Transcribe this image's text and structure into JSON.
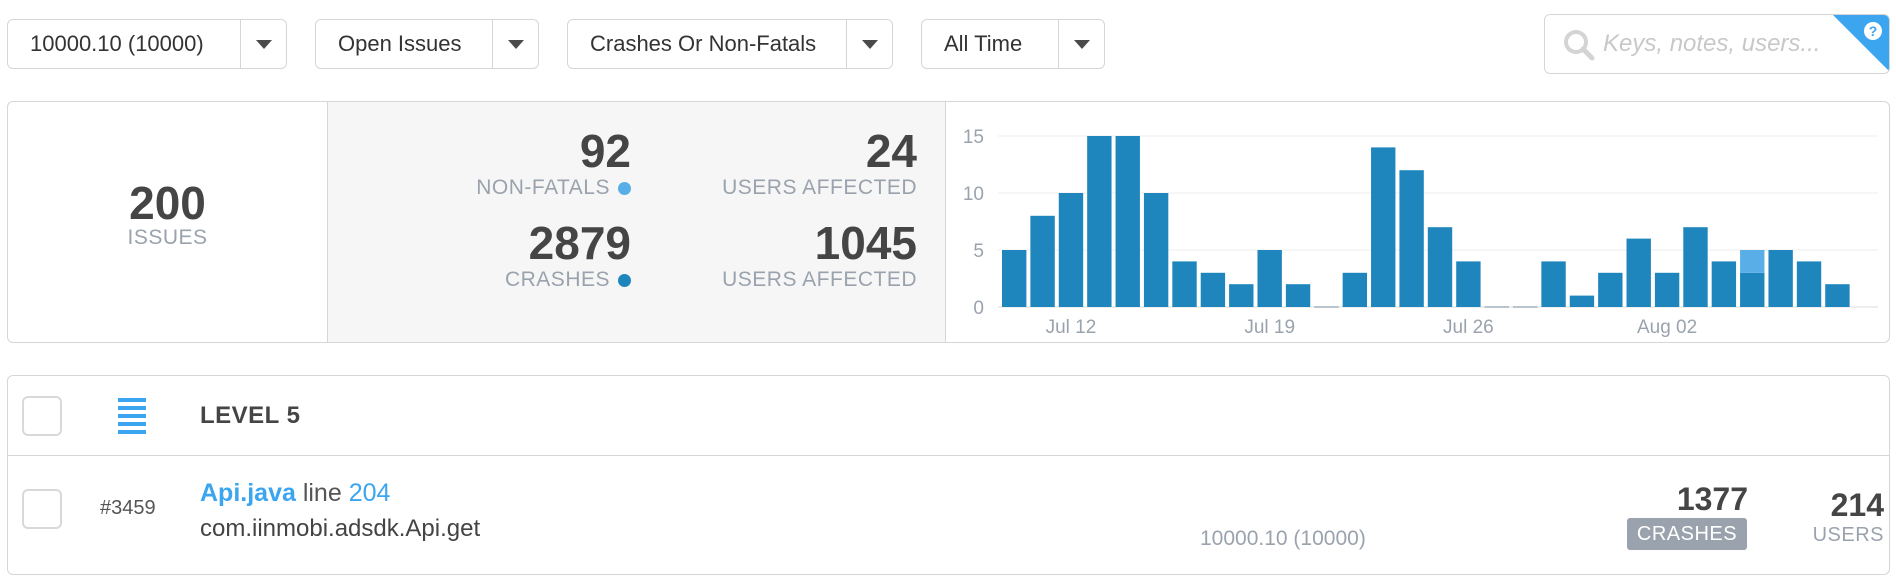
{
  "filters": {
    "version": "10000.10 (10000)",
    "status": "Open Issues",
    "type": "Crashes Or Non-Fatals",
    "time": "All Time"
  },
  "search": {
    "placeholder": "Keys, notes, users...",
    "help_glyph": "?"
  },
  "summary": {
    "issues_count": "200",
    "issues_label": "ISSUES",
    "non_fatals_count": "92",
    "non_fatals_label": "NON-FATALS",
    "non_fatals_users": "24",
    "non_fatals_users_label": "USERS AFFECTED",
    "crashes_count": "2879",
    "crashes_label": "CRASHES",
    "crashes_users": "1045",
    "crashes_users_label": "USERS AFFECTED"
  },
  "colors": {
    "crash": "#1f86bd",
    "non_fatal": "#5aaee8",
    "link": "#3ba5ef",
    "muted": "#9aa3ad"
  },
  "chart_data": {
    "type": "bar",
    "stacked": true,
    "yticks": [
      0,
      5,
      10,
      15
    ],
    "ylim": [
      0,
      15
    ],
    "xtick_labels": [
      {
        "label": "Jul 12",
        "index": 2
      },
      {
        "label": "Jul 19",
        "index": 9
      },
      {
        "label": "Jul 26",
        "index": 16
      },
      {
        "label": "Aug 02",
        "index": 23
      }
    ],
    "series": [
      {
        "name": "CRASHES",
        "values": [
          5,
          8,
          10,
          15,
          15,
          10,
          4,
          3,
          2,
          5,
          2,
          0,
          3,
          14,
          12,
          7,
          4,
          0,
          0,
          4,
          1,
          3,
          6,
          3,
          7,
          4,
          3,
          5,
          4,
          2
        ]
      },
      {
        "name": "NON-FATALS",
        "values": [
          0,
          0,
          0,
          0,
          0,
          0,
          0,
          0,
          0,
          0,
          0,
          0,
          0,
          0,
          0,
          0,
          0,
          0,
          0,
          0,
          0,
          0,
          0,
          0,
          0,
          0,
          2,
          0,
          0,
          0
        ]
      }
    ],
    "grid": true
  },
  "list": {
    "level_label": "LEVEL 5",
    "issues": [
      {
        "number": "#3459",
        "file": "Api.java",
        "line_word": "line",
        "line_number": "204",
        "method": "com.iinmobi.adsdk.Api.get",
        "version": "10000.10 (10000)",
        "crashes": "1377",
        "crashes_label": "CRASHES",
        "users": "214",
        "users_label": "USERS"
      }
    ]
  }
}
